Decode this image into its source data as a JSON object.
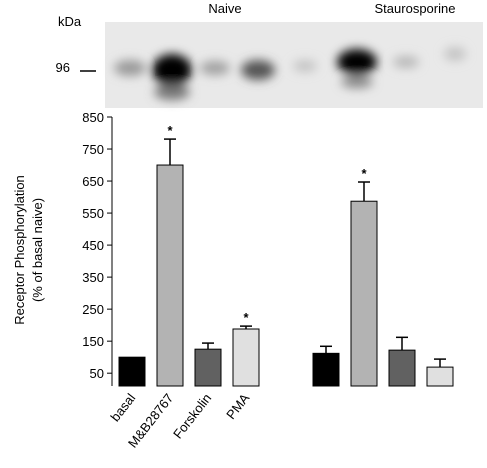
{
  "chart_data": {
    "type": "bar",
    "ylabel": [
      "Receptor Phosphorylation",
      "(% of basal naive)"
    ],
    "groups": [
      "Naive",
      "Staurosporine"
    ],
    "blot_labels": {
      "unit": "kDa",
      "marker": "96"
    },
    "categories": [
      "basal",
      "M&B28767",
      "Forskolin",
      "PMA",
      null,
      null,
      null,
      null
    ],
    "values": [
      100,
      700,
      125,
      188,
      112,
      587,
      122,
      69
    ],
    "errors": [
      0,
      81,
      19,
      9,
      22,
      60,
      40,
      25
    ],
    "colors": [
      "#000000",
      "#b3b3b3",
      "#616161",
      "#e0e0e0",
      "#000000",
      "#b3b3b3",
      "#616161",
      "#e0e0e0"
    ],
    "annotations": [
      {
        "text": "*",
        "index": 1
      },
      {
        "text": "*",
        "index": 3
      },
      {
        "text": "*",
        "index": 5
      }
    ],
    "ylim": [
      10,
      850
    ],
    "yticks": [
      50,
      150,
      250,
      350,
      450,
      550,
      650,
      750,
      850
    ]
  }
}
